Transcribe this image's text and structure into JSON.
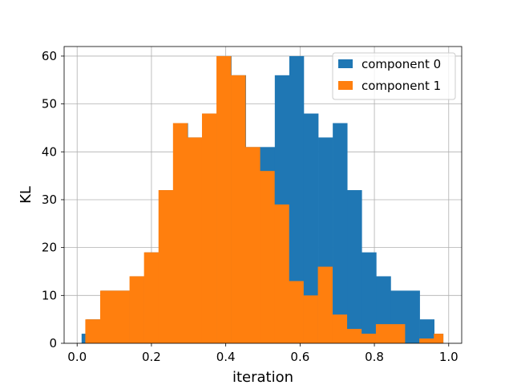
{
  "chart_data": {
    "type": "bar",
    "subtype": "histogram",
    "xlabel": "iteration",
    "ylabel": "KL",
    "xlim": [
      -0.035,
      1.035
    ],
    "ylim": [
      0,
      62
    ],
    "xticks": [
      0.0,
      0.2,
      0.4,
      0.6,
      0.8,
      1.0
    ],
    "xtick_labels": [
      "0.0",
      "0.2",
      "0.4",
      "0.6",
      "0.8",
      "1.0"
    ],
    "yticks": [
      0,
      10,
      20,
      30,
      40,
      50,
      60
    ],
    "ytick_labels": [
      "0",
      "10",
      "20",
      "30",
      "40",
      "50",
      "60"
    ],
    "grid": true,
    "legend_position": "top-right",
    "series": [
      {
        "name": "component 0",
        "color": "#1f77b4",
        "bins": [
          [
            0.012,
            0.025,
            2
          ],
          [
            0.025,
            0.065,
            5
          ],
          [
            0.065,
            0.143,
            11
          ],
          [
            0.143,
            0.182,
            14
          ],
          [
            0.182,
            0.22,
            19
          ],
          [
            0.22,
            0.259,
            32
          ],
          [
            0.259,
            0.298,
            46
          ],
          [
            0.298,
            0.337,
            43
          ],
          [
            0.337,
            0.376,
            48
          ],
          [
            0.376,
            0.415,
            60
          ],
          [
            0.415,
            0.454,
            56
          ],
          [
            0.454,
            0.493,
            41
          ],
          [
            0.493,
            0.532,
            41
          ],
          [
            0.532,
            0.571,
            56
          ],
          [
            0.571,
            0.61,
            60
          ],
          [
            0.61,
            0.649,
            48
          ],
          [
            0.649,
            0.688,
            43
          ],
          [
            0.688,
            0.727,
            46
          ],
          [
            0.727,
            0.766,
            32
          ],
          [
            0.766,
            0.805,
            19
          ],
          [
            0.805,
            0.844,
            14
          ],
          [
            0.844,
            0.922,
            11
          ],
          [
            0.922,
            0.961,
            5
          ],
          [
            0.961,
            0.985,
            2
          ]
        ]
      },
      {
        "name": "component 1",
        "color": "#ff7f0e",
        "bins": [
          [
            0.022,
            0.062,
            5
          ],
          [
            0.062,
            0.141,
            11
          ],
          [
            0.141,
            0.18,
            14
          ],
          [
            0.18,
            0.219,
            19
          ],
          [
            0.219,
            0.258,
            32
          ],
          [
            0.258,
            0.297,
            46
          ],
          [
            0.297,
            0.336,
            43
          ],
          [
            0.336,
            0.375,
            48
          ],
          [
            0.375,
            0.414,
            60
          ],
          [
            0.414,
            0.453,
            56
          ],
          [
            0.453,
            0.492,
            41
          ],
          [
            0.492,
            0.531,
            36
          ],
          [
            0.531,
            0.57,
            29
          ],
          [
            0.57,
            0.609,
            13
          ],
          [
            0.609,
            0.648,
            10
          ],
          [
            0.648,
            0.687,
            16
          ],
          [
            0.687,
            0.726,
            6
          ],
          [
            0.726,
            0.765,
            3
          ],
          [
            0.765,
            0.804,
            2
          ],
          [
            0.804,
            0.882,
            4
          ],
          [
            0.882,
            0.921,
            0
          ],
          [
            0.921,
            0.96,
            1
          ],
          [
            0.96,
            0.985,
            2
          ]
        ]
      }
    ]
  }
}
